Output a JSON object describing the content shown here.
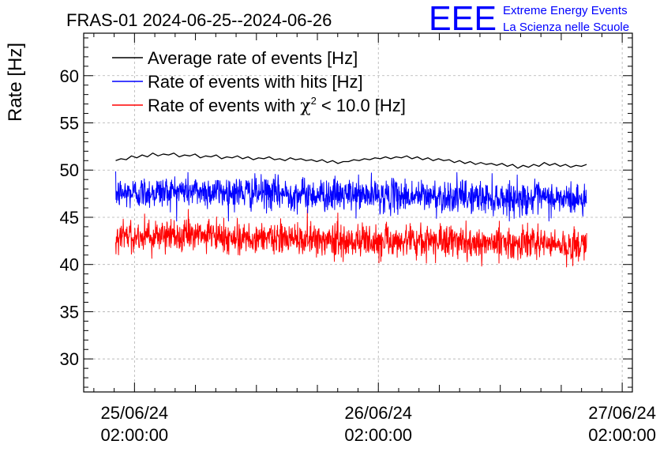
{
  "chart_data": {
    "type": "line",
    "title": "FRAS-01 2024-06-25--2024-06-26",
    "xlabel": "",
    "ylabel": "Rate [Hz]",
    "ylim": [
      26.5,
      64.5
    ],
    "yticks": [
      30,
      35,
      40,
      45,
      50,
      55,
      60
    ],
    "xlim_hours": [
      -5.0,
      49.0
    ],
    "x_unit": "hours since 25/06/24 02:00:00",
    "xticks": [
      {
        "hours": 0,
        "date": "25/06/24",
        "time": "02:00:00"
      },
      {
        "hours": 24,
        "date": "26/06/24",
        "time": "02:00:00"
      },
      {
        "hours": 48,
        "date": "27/06/24",
        "time": "02:00:00"
      }
    ],
    "grid": true,
    "legend_position": "top-left",
    "legend": {
      "black": "Average rate of events [Hz]",
      "blue": "Rate of events with hits [Hz]",
      "red_prefix": "Rate of events with ",
      "red_symbol": "χ",
      "red_exponent": "2",
      "red_suffix": " < 10.0 [Hz]"
    },
    "series": [
      {
        "name": "Average rate of events [Hz]",
        "color": "#000000",
        "x_start": -1.85,
        "x_end": 44.5,
        "values": [
          51.0,
          51.2,
          51.1,
          51.5,
          51.3,
          51.6,
          51.4,
          51.8,
          51.5,
          51.7,
          51.6,
          51.8,
          51.4,
          51.6,
          51.5,
          51.7,
          51.3,
          51.5,
          51.4,
          51.6,
          51.2,
          51.4,
          51.3,
          51.5,
          51.2,
          51.4,
          51.1,
          51.3,
          51.2,
          51.4,
          51.1,
          51.2,
          51.0,
          51.3,
          51.1,
          51.2,
          51.0,
          51.1,
          50.9,
          51.1,
          50.8,
          51.0,
          50.7,
          50.9,
          50.9,
          51.1,
          51.0,
          51.2,
          51.1,
          51.3,
          51.2,
          51.4,
          51.2,
          51.4,
          51.3,
          51.5,
          51.2,
          51.4,
          51.1,
          51.3,
          51.0,
          51.2,
          51.0,
          51.1,
          50.8,
          51.0,
          50.7,
          50.9,
          50.6,
          50.8,
          50.6,
          50.7,
          50.5,
          50.7,
          50.4,
          50.6,
          50.2,
          50.5,
          50.3,
          50.6,
          50.4,
          50.8,
          50.5,
          50.7,
          50.4,
          50.6,
          50.3,
          50.5,
          50.4,
          50.6
        ]
      },
      {
        "name": "Rate of events with hits [Hz]",
        "color": "#0000ff",
        "x_start": -1.85,
        "x_end": 44.5,
        "trend": [
          47.5,
          47.8,
          47.6,
          47.4,
          47.3,
          47.2,
          47.0,
          46.9
        ],
        "noise_sd": 0.85,
        "samples": 1500,
        "range": [
          44.6,
          50.4
        ]
      },
      {
        "name": "Rate of events with χ2 < 10.0 [Hz]",
        "color": "#ff0000",
        "x_start": -1.85,
        "x_end": 44.5,
        "trend": [
          43.0,
          43.1,
          42.8,
          42.6,
          42.5,
          42.4,
          42.2,
          42.1
        ],
        "noise_sd": 0.85,
        "samples": 1500,
        "range": [
          39.6,
          46.0
        ]
      }
    ]
  },
  "logo": {
    "mark": "EEE",
    "line1": "Extreme Energy Events",
    "line2": "La Scienza nelle Scuole"
  }
}
